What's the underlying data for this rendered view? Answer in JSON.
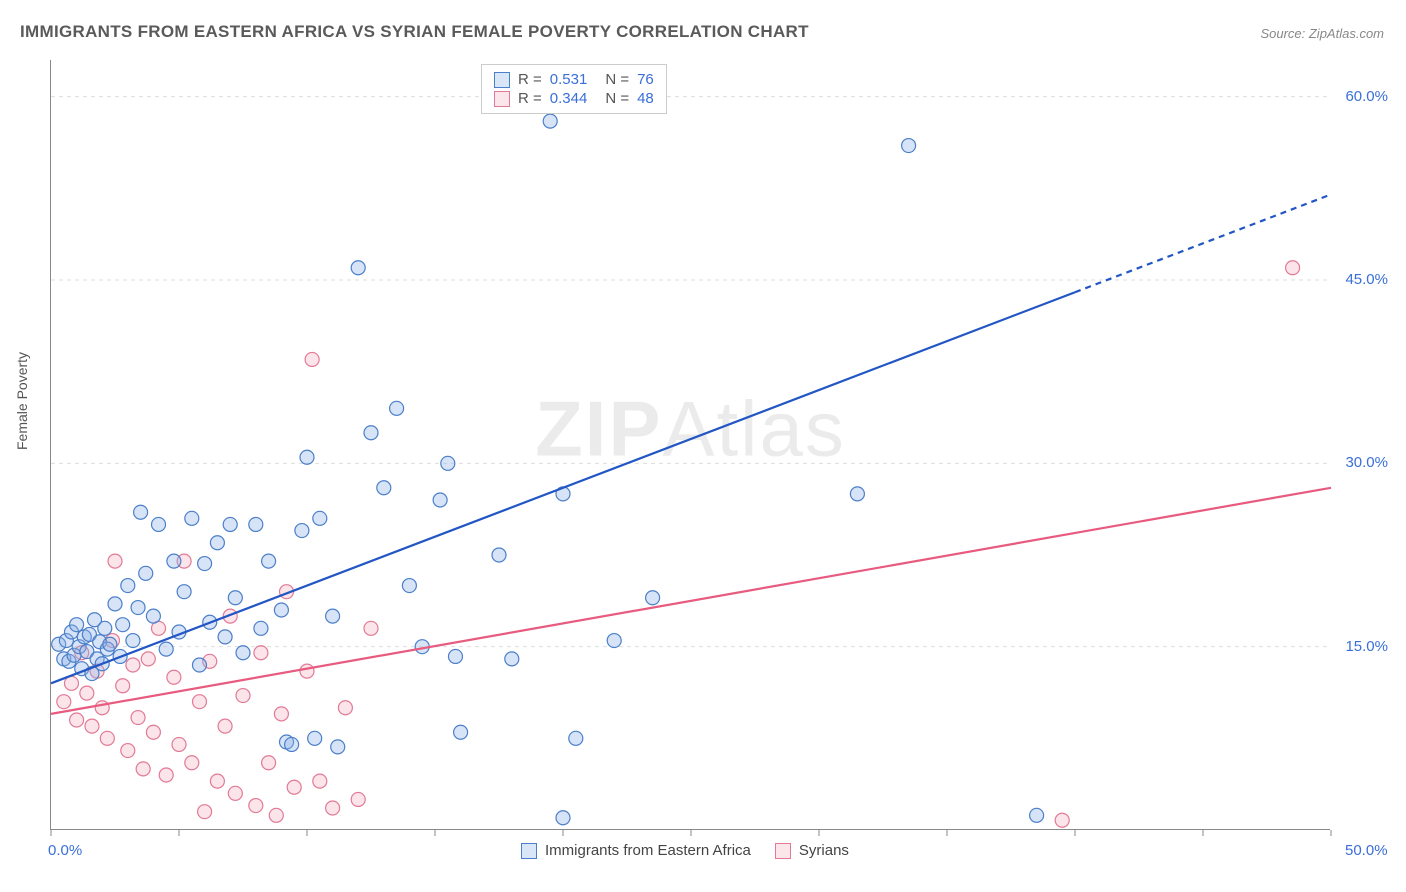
{
  "title": "IMMIGRANTS FROM EASTERN AFRICA VS SYRIAN FEMALE POVERTY CORRELATION CHART",
  "source": "Source: ZipAtlas.com",
  "y_axis_label": "Female Poverty",
  "watermark": "ZIPAtlas",
  "chart": {
    "type": "scatter",
    "xlim": [
      0,
      50
    ],
    "ylim": [
      0,
      63
    ],
    "x_ticks": [
      0,
      5,
      10,
      15,
      20,
      25,
      30,
      35,
      40,
      45,
      50
    ],
    "x_tick_labels": {
      "0": "0.0%",
      "50": "50.0%"
    },
    "y_ticks": [
      15,
      30,
      45,
      60
    ],
    "y_tick_labels": {
      "15": "15.0%",
      "30": "30.0%",
      "45": "45.0%",
      "60": "60.0%"
    },
    "background_color": "#ffffff",
    "grid_color": "#dddddd",
    "axis_color": "#888888",
    "tick_label_color": "#3a6fd8",
    "marker_radius": 7,
    "marker_stroke_width": 1.2,
    "marker_fill_opacity": 0.35,
    "trend_line_width": 2.2,
    "series": [
      {
        "name": "Immigrants from Eastern Africa",
        "color_fill": "#8bb3e8",
        "color_stroke": "#4b7fc9",
        "trend_color": "#2256c4",
        "r": "0.531",
        "n": "76",
        "trend": {
          "x1": 0,
          "y1": 12.0,
          "x2": 40,
          "y2": 44.0,
          "x2_dash": 50,
          "y2_dash": 52.0
        },
        "points": [
          [
            0.3,
            15.2
          ],
          [
            0.5,
            14.0
          ],
          [
            0.6,
            15.5
          ],
          [
            0.7,
            13.8
          ],
          [
            0.8,
            16.2
          ],
          [
            0.9,
            14.3
          ],
          [
            1.0,
            16.8
          ],
          [
            1.1,
            15.0
          ],
          [
            1.2,
            13.2
          ],
          [
            1.3,
            15.8
          ],
          [
            1.4,
            14.6
          ],
          [
            1.5,
            16.0
          ],
          [
            1.6,
            12.8
          ],
          [
            1.7,
            17.2
          ],
          [
            1.8,
            14.0
          ],
          [
            1.9,
            15.4
          ],
          [
            2.0,
            13.6
          ],
          [
            2.1,
            16.5
          ],
          [
            2.2,
            14.8
          ],
          [
            2.3,
            15.2
          ],
          [
            2.5,
            18.5
          ],
          [
            2.7,
            14.2
          ],
          [
            2.8,
            16.8
          ],
          [
            3.0,
            20.0
          ],
          [
            3.2,
            15.5
          ],
          [
            3.4,
            18.2
          ],
          [
            3.5,
            26.0
          ],
          [
            3.7,
            21.0
          ],
          [
            4.0,
            17.5
          ],
          [
            4.2,
            25.0
          ],
          [
            4.5,
            14.8
          ],
          [
            4.8,
            22.0
          ],
          [
            5.0,
            16.2
          ],
          [
            5.2,
            19.5
          ],
          [
            5.5,
            25.5
          ],
          [
            5.8,
            13.5
          ],
          [
            6.0,
            21.8
          ],
          [
            6.2,
            17.0
          ],
          [
            6.5,
            23.5
          ],
          [
            6.8,
            15.8
          ],
          [
            7.0,
            25.0
          ],
          [
            7.2,
            19.0
          ],
          [
            7.5,
            14.5
          ],
          [
            8.0,
            25.0
          ],
          [
            8.2,
            16.5
          ],
          [
            8.5,
            22.0
          ],
          [
            9.0,
            18.0
          ],
          [
            9.2,
            7.2
          ],
          [
            9.4,
            7.0
          ],
          [
            9.8,
            24.5
          ],
          [
            10.0,
            30.5
          ],
          [
            10.3,
            7.5
          ],
          [
            10.5,
            25.5
          ],
          [
            11.0,
            17.5
          ],
          [
            11.2,
            6.8
          ],
          [
            12.0,
            46.0
          ],
          [
            12.5,
            32.5
          ],
          [
            13.0,
            28.0
          ],
          [
            13.5,
            34.5
          ],
          [
            14.0,
            20.0
          ],
          [
            14.5,
            15.0
          ],
          [
            15.2,
            27.0
          ],
          [
            15.5,
            30.0
          ],
          [
            15.8,
            14.2
          ],
          [
            16.0,
            8.0
          ],
          [
            17.5,
            22.5
          ],
          [
            18.0,
            14.0
          ],
          [
            19.5,
            58.0
          ],
          [
            20.0,
            27.5
          ],
          [
            20.5,
            7.5
          ],
          [
            22.0,
            15.5
          ],
          [
            23.5,
            19.0
          ],
          [
            31.5,
            27.5
          ],
          [
            33.5,
            56.0
          ],
          [
            20.0,
            1.0
          ],
          [
            38.5,
            1.2
          ]
        ]
      },
      {
        "name": "Syrians",
        "color_fill": "#f4b3c2",
        "color_stroke": "#e27a95",
        "trend_color": "#e85a7f",
        "r": "0.344",
        "n": "48",
        "trend": {
          "x1": 0,
          "y1": 9.5,
          "x2": 50,
          "y2": 28.0
        },
        "points": [
          [
            0.5,
            10.5
          ],
          [
            0.8,
            12.0
          ],
          [
            1.0,
            9.0
          ],
          [
            1.2,
            14.5
          ],
          [
            1.4,
            11.2
          ],
          [
            1.6,
            8.5
          ],
          [
            1.8,
            13.0
          ],
          [
            2.0,
            10.0
          ],
          [
            2.2,
            7.5
          ],
          [
            2.4,
            15.5
          ],
          [
            2.5,
            22.0
          ],
          [
            2.8,
            11.8
          ],
          [
            3.0,
            6.5
          ],
          [
            3.2,
            13.5
          ],
          [
            3.4,
            9.2
          ],
          [
            3.6,
            5.0
          ],
          [
            3.8,
            14.0
          ],
          [
            4.0,
            8.0
          ],
          [
            4.2,
            16.5
          ],
          [
            4.5,
            4.5
          ],
          [
            4.8,
            12.5
          ],
          [
            5.0,
            7.0
          ],
          [
            5.2,
            22.0
          ],
          [
            5.5,
            5.5
          ],
          [
            5.8,
            10.5
          ],
          [
            6.0,
            1.5
          ],
          [
            6.2,
            13.8
          ],
          [
            6.5,
            4.0
          ],
          [
            6.8,
            8.5
          ],
          [
            7.0,
            17.5
          ],
          [
            7.2,
            3.0
          ],
          [
            7.5,
            11.0
          ],
          [
            8.0,
            2.0
          ],
          [
            8.2,
            14.5
          ],
          [
            8.5,
            5.5
          ],
          [
            8.8,
            1.2
          ],
          [
            9.0,
            9.5
          ],
          [
            9.2,
            19.5
          ],
          [
            9.5,
            3.5
          ],
          [
            10.0,
            13.0
          ],
          [
            10.2,
            38.5
          ],
          [
            10.5,
            4.0
          ],
          [
            11.0,
            1.8
          ],
          [
            11.5,
            10.0
          ],
          [
            12.0,
            2.5
          ],
          [
            12.5,
            16.5
          ],
          [
            39.5,
            0.8
          ],
          [
            48.5,
            46.0
          ]
        ]
      }
    ]
  },
  "legend_top": {
    "r_label": "R =",
    "n_label": "N ="
  },
  "legend_bottom_labels": [
    "Immigrants from Eastern Africa",
    "Syrians"
  ]
}
